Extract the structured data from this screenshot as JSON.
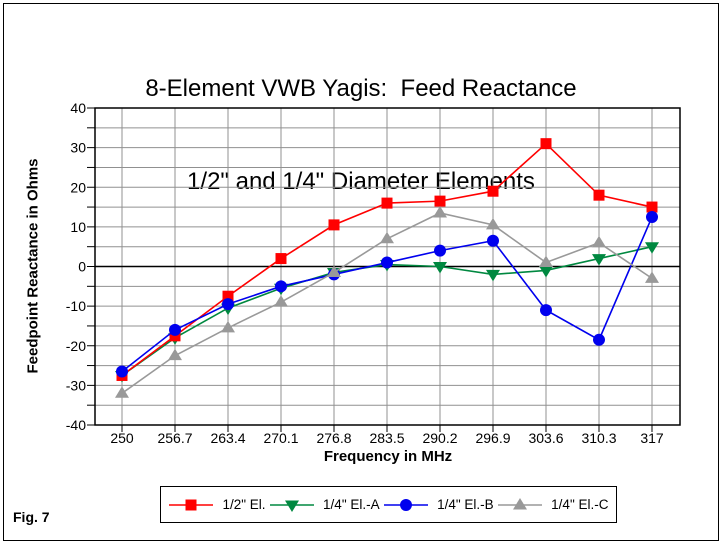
{
  "page": {
    "fig_label": "Fig. 7"
  },
  "chart_data": {
    "type": "line",
    "title_line1": "8-Element VWB Yagis:  Feed Reactance",
    "title_line2": "1/2\" and 1/4\" Diameter Elements",
    "xlabel": "Frequency in MHz",
    "ylabel": "Feedpoint Reactance in Ohms",
    "x": [
      250,
      256.7,
      263.4,
      270.1,
      276.8,
      283.5,
      290.2,
      296.9,
      303.6,
      310.3,
      317
    ],
    "x_tick_labels": [
      "250",
      "256.7",
      "263.4",
      "270.1",
      "276.8",
      "283.5",
      "290.2",
      "296.9",
      "303.6",
      "310.3",
      "317"
    ],
    "ylim": [
      -40,
      40
    ],
    "y_major_step": 10,
    "y_minor_step": 5,
    "grid": true,
    "grid_color": "#909090",
    "legend_position": "bottom",
    "draw_order": [
      1,
      0,
      2,
      3
    ],
    "series": [
      {
        "name": "1/2\" El.",
        "color": "#FF0000",
        "marker": "square",
        "values": [
          -27.5,
          -17.5,
          -7.5,
          2,
          10.5,
          16,
          16.5,
          19,
          31,
          18,
          15
        ]
      },
      {
        "name": "1/4\" El.-A",
        "color": "#008840",
        "marker": "triangle-down",
        "values": [
          -27.5,
          -18,
          -10.5,
          -5.5,
          -1.5,
          0.5,
          0,
          -2,
          -1,
          2,
          5
        ]
      },
      {
        "name": "1/4\" El.-B",
        "color": "#0000EE",
        "marker": "circle",
        "values": [
          -26.5,
          -16,
          -9.5,
          -5,
          -2,
          1,
          4,
          6.5,
          -11,
          -18.5,
          12.5
        ]
      },
      {
        "name": "1/4\" El.-C",
        "color": "#999999",
        "marker": "triangle-up",
        "values": [
          -32,
          -22.5,
          -15.5,
          -9,
          -1.5,
          7,
          13.5,
          10.5,
          1,
          6,
          -3
        ]
      }
    ]
  }
}
